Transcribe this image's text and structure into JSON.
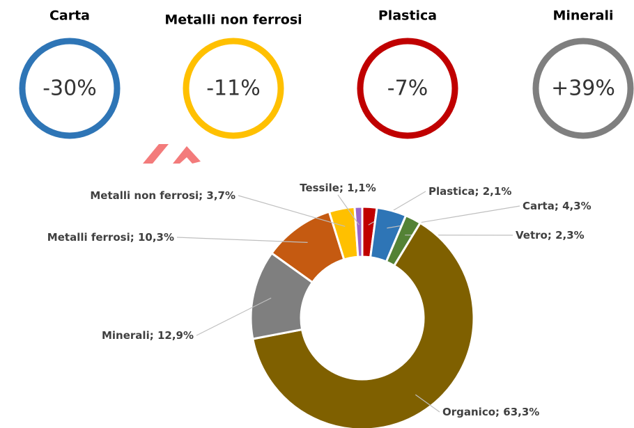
{
  "kpis": [
    {
      "name": "Carta",
      "value": "-30%",
      "color": "#2e75b6"
    },
    {
      "name": "Metalli non ferrosi",
      "value": "-11%",
      "color": "#ffc000"
    },
    {
      "name": "Plastica",
      "value": "-7%",
      "color": "#c00000"
    },
    {
      "name": "Minerali",
      "value": "+39%",
      "color": "#7f7f7f"
    }
  ],
  "chart_data": {
    "type": "donut",
    "categories": [
      "Plastica",
      "Carta",
      "Vetro",
      "Organico",
      "Minerali",
      "Metalli ferrosi",
      "Metalli non ferrosi",
      "Tessile"
    ],
    "values": [
      2.1,
      4.3,
      2.3,
      63.3,
      12.9,
      10.3,
      3.7,
      1.1
    ],
    "value_labels": [
      "2,1%",
      "4,3%",
      "2,3%",
      "63,3%",
      "12,9%",
      "10,3%",
      "3,7%",
      "1,1%"
    ],
    "label_separator": "; ",
    "colors": [
      "#c00000",
      "#2e75b6",
      "#548235",
      "#7f6000",
      "#7f7f7f",
      "#c55a11",
      "#ffc000",
      "#9966cc"
    ]
  }
}
